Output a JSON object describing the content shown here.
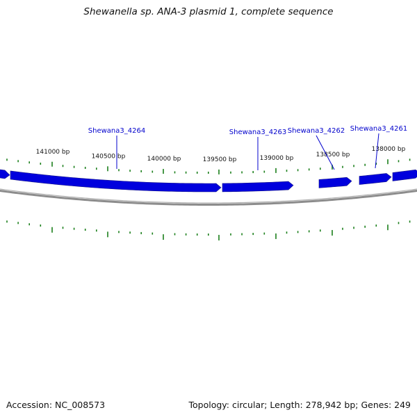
{
  "title": "Shewanella sp. ANA-3 plasmid 1, complete sequence",
  "footer": {
    "accession": "Accession: NC_008573",
    "summary": "Topology: circular; Length: 278,942 bp; Genes: 249"
  },
  "colors": {
    "gene": "#0000dd",
    "gene_label": "#0000cc",
    "tick": "#1a7f1a",
    "backbone": "#8c8c8c"
  },
  "ticks": [
    {
      "label": "141000 bp"
    },
    {
      "label": "140500 bp"
    },
    {
      "label": "140000 bp"
    },
    {
      "label": "139500 bp"
    },
    {
      "label": "139000 bp"
    },
    {
      "label": "138500 bp"
    },
    {
      "label": "138000 bp"
    }
  ],
  "genes": [
    {
      "label": "Shewana3_4264"
    },
    {
      "label": "Shewana3_4263"
    },
    {
      "label": "Shewana3_4262"
    },
    {
      "label": "Shewana3_4261"
    }
  ]
}
